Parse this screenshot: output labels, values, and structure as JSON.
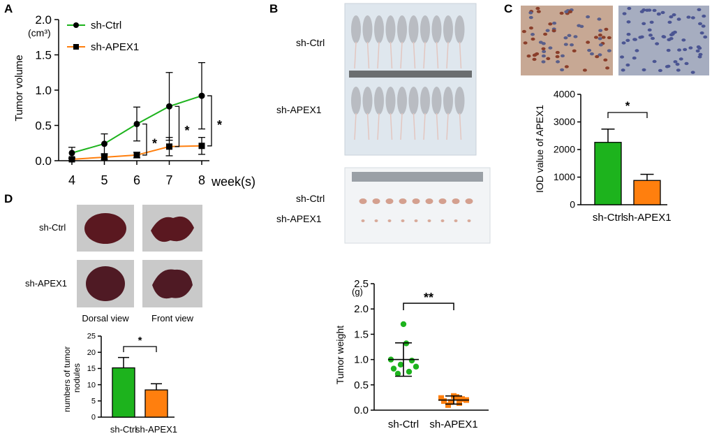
{
  "panels": {
    "a": "A",
    "b": "B",
    "c": "C",
    "d": "D"
  },
  "colors": {
    "ctrl": "#1db31d",
    "apex": "#ff7f0e",
    "axis": "#000000",
    "photo_bg": "#dfe7ee",
    "mouse": "#b9bcc2",
    "liver": "#5a1820"
  },
  "groups": {
    "ctrl": "sh-Ctrl",
    "apex": "sh-APEX1"
  },
  "photo_labels": {
    "dorsal": "Dorsal view",
    "front": "Front view"
  },
  "chart_data": [
    {
      "id": "A",
      "type": "line",
      "ylabel": "Tumor volume",
      "yunit": "(cm³)",
      "xunit": "week(s)",
      "x": [
        4,
        5,
        6,
        7,
        8
      ],
      "ylim": [
        0,
        2.0
      ],
      "yticks": [
        "0.0",
        "0.5",
        "1.0",
        "1.5",
        "2.0"
      ],
      "series": [
        {
          "name": "sh-Ctrl",
          "values": [
            0.11,
            0.24,
            0.52,
            0.77,
            0.92
          ],
          "err": [
            0.08,
            0.14,
            0.24,
            0.48,
            0.47
          ]
        },
        {
          "name": "sh-APEX1",
          "values": [
            0.02,
            0.05,
            0.08,
            0.2,
            0.21
          ],
          "err": [
            0.02,
            0.03,
            0.04,
            0.13,
            0.12
          ]
        }
      ],
      "annotations": [
        "*",
        "*",
        "*"
      ]
    },
    {
      "id": "B",
      "type": "scatter",
      "ylabel": "Tumor weight",
      "yunit": "(g)",
      "ylim": [
        0,
        2.5
      ],
      "yticks": [
        "0.0",
        "0.5",
        "1.0",
        "1.5",
        "2.0",
        "2.5"
      ],
      "categories": [
        "sh-Ctrl",
        "sh-APEX1"
      ],
      "series": [
        {
          "name": "sh-Ctrl",
          "mean": 1.0,
          "sd": 0.33,
          "values": [
            1.7,
            1.32,
            1.0,
            0.98,
            0.86,
            0.82,
            0.9,
            0.76,
            0.72
          ]
        },
        {
          "name": "sh-APEX1",
          "mean": 0.2,
          "sd": 0.08,
          "values": [
            0.28,
            0.26,
            0.24,
            0.22,
            0.2,
            0.18,
            0.16,
            0.14,
            0.1
          ]
        }
      ],
      "annotation": "**"
    },
    {
      "id": "C",
      "type": "bar",
      "ylabel": "IOD value of APEX1",
      "ylim": [
        0,
        4000
      ],
      "yticks": [
        "0",
        "1000",
        "2000",
        "3000",
        "4000"
      ],
      "categories": [
        "sh-Ctrl",
        "sh-APEX1"
      ],
      "values": [
        2260,
        880
      ],
      "err": [
        480,
        220
      ],
      "annotation": "*"
    },
    {
      "id": "D",
      "type": "bar",
      "ylabel": "numbers of tumor nodules",
      "ylim": [
        0,
        25
      ],
      "yticks": [
        "0",
        "5",
        "10",
        "15",
        "20",
        "25"
      ],
      "categories": [
        "sh-Ctrl",
        "sh-APEX1"
      ],
      "values": [
        15.2,
        8.4
      ],
      "err": [
        3.2,
        1.9
      ],
      "annotation": "*"
    }
  ]
}
